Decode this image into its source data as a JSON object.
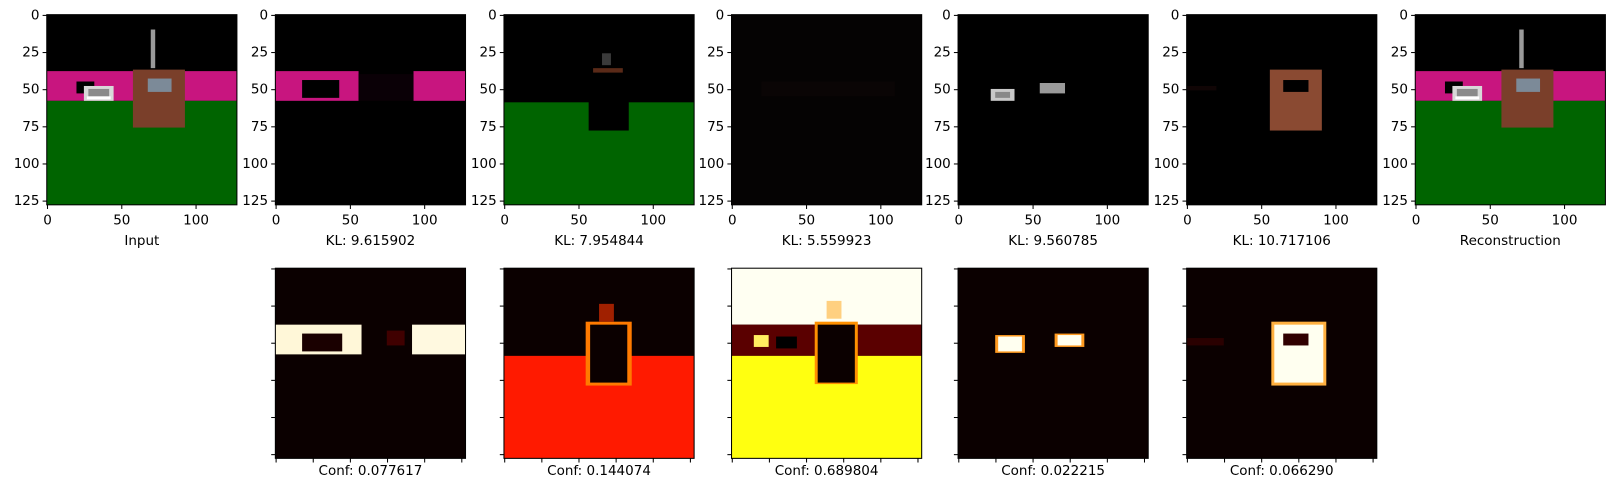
{
  "axis": {
    "yticks": [
      0,
      25,
      50,
      75,
      100,
      125
    ],
    "xticks": [
      0,
      50,
      100
    ]
  },
  "panels_top": [
    {
      "caption": "Input"
    },
    {
      "caption": "KL: 9.615902"
    },
    {
      "caption": "KL: 7.954844"
    },
    {
      "caption": "KL: 5.559923"
    },
    {
      "caption": "KL: 9.560785"
    },
    {
      "caption": "KL: 10.717106"
    },
    {
      "caption": "Reconstruction"
    }
  ],
  "panels_bottom": [
    {
      "caption": "Conf: 0.077617"
    },
    {
      "caption": "Conf: 0.144074"
    },
    {
      "caption": "Conf: 0.689804"
    },
    {
      "caption": "Conf: 0.022215"
    },
    {
      "caption": "Conf: 0.066290"
    }
  ]
}
